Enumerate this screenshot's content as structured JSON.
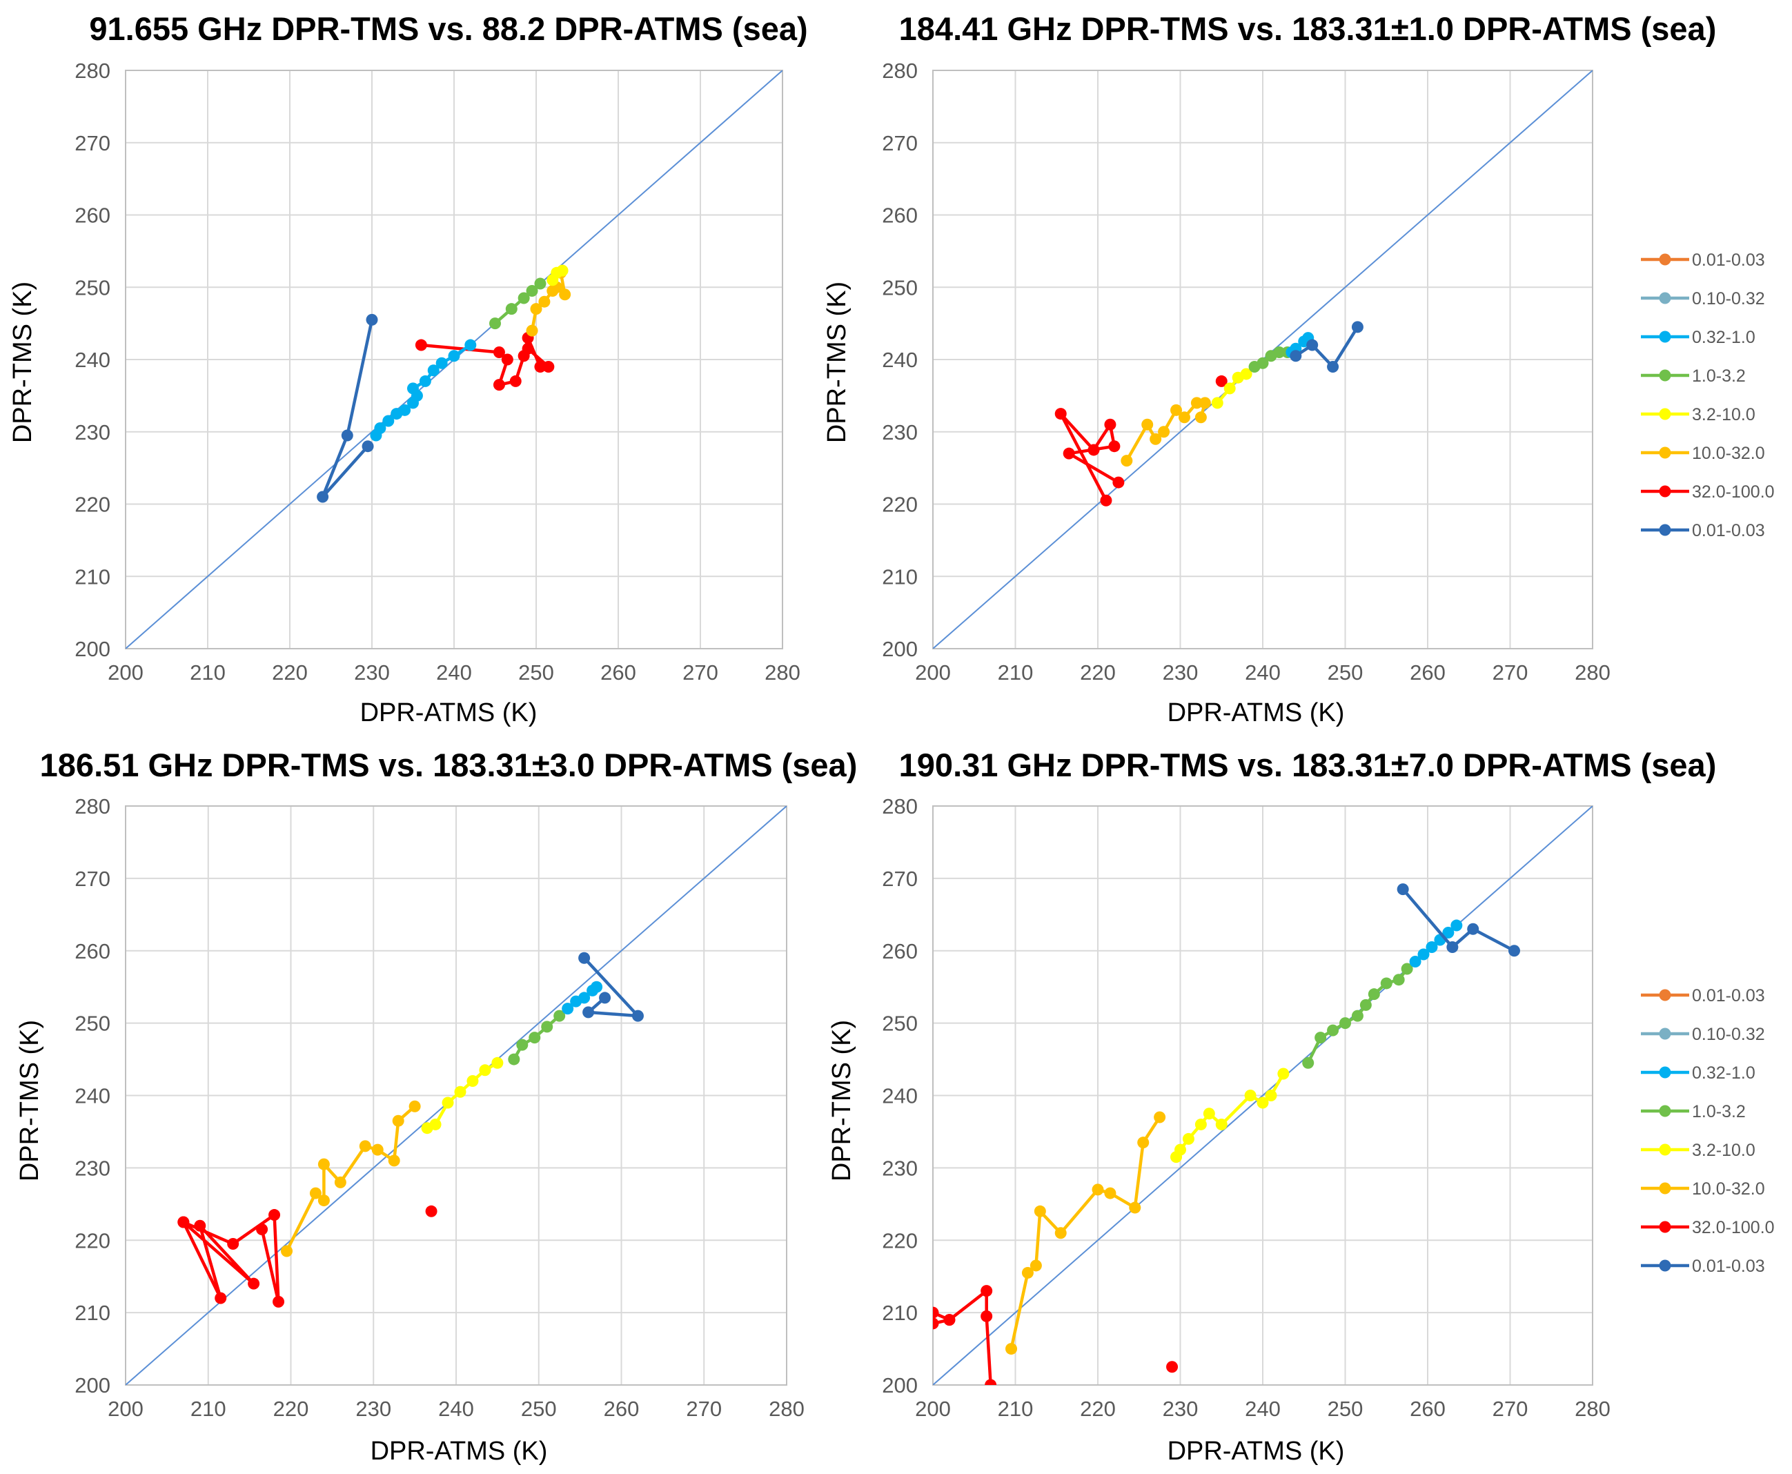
{
  "colors": {
    "grid": "#d9d9d9",
    "one_to_one_line": "#5b8fd6",
    "frame": "#bfbfbf",
    "series": [
      "#ed7d31",
      "#7ab0c4",
      "#00b0f0",
      "#70c04a",
      "#ffff00",
      "#ffc000",
      "#ff0000",
      "#2e6bb5"
    ]
  },
  "legend": {
    "items": [
      "0.01-0.03",
      "0.10-0.32",
      "0.32-1.0",
      "1.0-3.2",
      "3.2-10.0",
      "10.0-32.0",
      "32.0-100.0",
      "0.01-0.03"
    ]
  },
  "chart_data": [
    {
      "type": "line",
      "title": "91.655 GHz DPR-TMS vs. 88.2 DPR-ATMS (sea)",
      "xlabel": "DPR-ATMS (K)",
      "ylabel": "DPR-TMS (K)",
      "xlim": [
        200,
        280
      ],
      "ylim": [
        200,
        280
      ],
      "xticks": [
        "200",
        "210",
        "220",
        "230",
        "240",
        "250",
        "260",
        "270",
        "280"
      ],
      "yticks": [
        "200",
        "210",
        "220",
        "230",
        "240",
        "250",
        "260",
        "270",
        "280"
      ],
      "grid": true,
      "reference_line": [
        [
          200,
          200
        ],
        [
          280,
          280
        ]
      ],
      "series": [
        {
          "name": "32.0-100.0",
          "points": [
            [
              236,
              242
            ],
            [
              245.5,
              241
            ],
            [
              246.5,
              240
            ],
            [
              245.5,
              236.5
            ],
            [
              247.5,
              237
            ],
            [
              248.5,
              240.5
            ],
            [
              249,
              243
            ],
            [
              250.5,
              239
            ],
            [
              251.5,
              239
            ],
            [
              249,
              241.5
            ]
          ]
        },
        {
          "name": "10.0-32.0",
          "points": [
            [
              249.5,
              244
            ],
            [
              250,
              247
            ],
            [
              251,
              248
            ],
            [
              252,
              249.5
            ],
            [
              252.5,
              250
            ],
            [
              253.5,
              249
            ],
            [
              253,
              252
            ]
          ]
        },
        {
          "name": "3.2-10.0",
          "points": [
            [
              252,
              251
            ],
            [
              252.5,
              252
            ],
            [
              253.2,
              252.3
            ]
          ]
        },
        {
          "name": "1.0-3.2",
          "points": [
            [
              245,
              245
            ],
            [
              247,
              247
            ],
            [
              248.5,
              248.5
            ],
            [
              249.5,
              249.5
            ],
            [
              250.5,
              250.5
            ]
          ]
        },
        {
          "name": "0.32-1.0",
          "points": [
            [
              230.5,
              229.5
            ],
            [
              231,
              230.5
            ],
            [
              232,
              231.5
            ],
            [
              233,
              232.5
            ],
            [
              234,
              233
            ],
            [
              235,
              234
            ],
            [
              235.5,
              235
            ],
            [
              235,
              236
            ],
            [
              236.5,
              237
            ],
            [
              237.5,
              238.5
            ],
            [
              238.5,
              239.5
            ],
            [
              240,
              240.5
            ],
            [
              242,
              242
            ]
          ]
        },
        {
          "name": "0.01-0.03",
          "points": [
            [
              229.5,
              228
            ],
            [
              224,
              221
            ],
            [
              227,
              229.5
            ],
            [
              230,
              245.5
            ]
          ]
        }
      ]
    },
    {
      "type": "line",
      "title": "184.41 GHz DPR-TMS vs. 183.31±1.0 DPR-ATMS (sea)",
      "xlabel": "DPR-ATMS (K)",
      "ylabel": "DPR-TMS (K)",
      "xlim": [
        200,
        280
      ],
      "ylim": [
        200,
        280
      ],
      "xticks": [
        "200",
        "210",
        "220",
        "230",
        "240",
        "250",
        "260",
        "270",
        "280"
      ],
      "yticks": [
        "200",
        "210",
        "220",
        "230",
        "240",
        "250",
        "260",
        "270",
        "280"
      ],
      "grid": true,
      "reference_line": [
        [
          200,
          200
        ],
        [
          280,
          280
        ]
      ],
      "series": [
        {
          "name": "32.0-100.0",
          "points": [
            [
              221,
              220.5
            ],
            [
              215.5,
              232.5
            ],
            [
              219.5,
              227.5
            ],
            [
              221.5,
              231
            ],
            [
              222,
              228
            ],
            [
              216.5,
              227
            ],
            [
              222.5,
              223
            ]
          ]
        },
        {
          "name": "32.0-100.0 outlier",
          "points": [
            [
              235,
              237
            ]
          ]
        },
        {
          "name": "10.0-32.0",
          "points": [
            [
              223.5,
              226
            ],
            [
              226,
              231
            ],
            [
              227,
              229
            ],
            [
              228,
              230
            ],
            [
              229.5,
              233
            ],
            [
              230.5,
              232
            ],
            [
              232,
              234
            ],
            [
              233,
              234
            ],
            [
              232.5,
              232
            ]
          ]
        },
        {
          "name": "3.2-10.0",
          "points": [
            [
              234.5,
              234
            ],
            [
              236,
              236
            ],
            [
              237,
              237.5
            ],
            [
              238,
              238
            ]
          ]
        },
        {
          "name": "1.0-3.2",
          "points": [
            [
              239,
              239
            ],
            [
              240,
              239.5
            ],
            [
              241,
              240.5
            ],
            [
              242,
              241
            ],
            [
              243,
              241
            ]
          ]
        },
        {
          "name": "0.32-1.0",
          "points": [
            [
              243.5,
              241
            ],
            [
              244,
              241.5
            ],
            [
              245,
              242.5
            ],
            [
              245.5,
              243
            ]
          ]
        },
        {
          "name": "0.01-0.03",
          "points": [
            [
              244,
              240.5
            ],
            [
              246,
              242
            ],
            [
              248.5,
              239
            ],
            [
              251.5,
              244.5
            ]
          ]
        }
      ]
    },
    {
      "type": "line",
      "title": "186.51 GHz DPR-TMS vs. 183.31±3.0 DPR-ATMS (sea)",
      "xlabel": "DPR-ATMS (K)",
      "ylabel": "DPR-TMS (K)",
      "xlim": [
        200,
        280
      ],
      "ylim": [
        200,
        280
      ],
      "xticks": [
        "200",
        "210",
        "220",
        "230",
        "240",
        "250",
        "260",
        "270",
        "280"
      ],
      "yticks": [
        "200",
        "210",
        "220",
        "230",
        "240",
        "250",
        "260",
        "270",
        "280"
      ],
      "grid": true,
      "reference_line": [
        [
          200,
          200
        ],
        [
          280,
          280
        ]
      ],
      "series": [
        {
          "name": "32.0-100.0",
          "points": [
            [
              207,
              222.5
            ],
            [
              211.5,
              212
            ],
            [
              209,
              222
            ],
            [
              215.5,
              214
            ],
            [
              207,
              222.5
            ],
            [
              213,
              219.5
            ],
            [
              218,
              223.5
            ],
            [
              218.5,
              211.5
            ],
            [
              216.5,
              221.5
            ]
          ]
        },
        {
          "name": "32.0-100.0 outlier",
          "points": [
            [
              237,
              224
            ]
          ]
        },
        {
          "name": "10.0-32.0",
          "points": [
            [
              219.5,
              218.5
            ],
            [
              223,
              226.5
            ],
            [
              224,
              225.5
            ],
            [
              224,
              230.5
            ],
            [
              226,
              228
            ],
            [
              229,
              233
            ],
            [
              230.5,
              232.5
            ],
            [
              232.5,
              231
            ],
            [
              233,
              236.5
            ],
            [
              235,
              238.5
            ]
          ]
        },
        {
          "name": "3.2-10.0",
          "points": [
            [
              236.5,
              235.5
            ],
            [
              237.5,
              236
            ],
            [
              239,
              239
            ],
            [
              240.5,
              240.5
            ],
            [
              242,
              242
            ],
            [
              243.5,
              243.5
            ],
            [
              245,
              244.5
            ]
          ]
        },
        {
          "name": "1.0-3.2",
          "points": [
            [
              247,
              245
            ],
            [
              248,
              247
            ],
            [
              249.5,
              248
            ],
            [
              251,
              249.5
            ],
            [
              252.5,
              251
            ]
          ]
        },
        {
          "name": "0.32-1.0",
          "points": [
            [
              253.5,
              252
            ],
            [
              254.5,
              253
            ],
            [
              255.5,
              253.5
            ],
            [
              256.5,
              254.5
            ],
            [
              257,
              255
            ]
          ]
        },
        {
          "name": "0.01-0.03",
          "points": [
            [
              255.5,
              259
            ],
            [
              262,
              251
            ],
            [
              256,
              251.5
            ],
            [
              258,
              253.5
            ]
          ]
        }
      ]
    },
    {
      "type": "line",
      "title": "190.31 GHz DPR-TMS vs. 183.31±7.0 DPR-ATMS (sea)",
      "xlabel": "DPR-ATMS (K)",
      "ylabel": "DPR-TMS (K)",
      "xlim": [
        200,
        280
      ],
      "ylim": [
        200,
        280
      ],
      "xticks": [
        "200",
        "210",
        "220",
        "230",
        "240",
        "250",
        "260",
        "270",
        "280"
      ],
      "yticks": [
        "200",
        "210",
        "220",
        "230",
        "240",
        "250",
        "260",
        "270",
        "280"
      ],
      "grid": true,
      "reference_line": [
        [
          200,
          200
        ],
        [
          280,
          280
        ]
      ],
      "series": [
        {
          "name": "32.0-100.0",
          "points": [
            [
              200,
              210
            ],
            [
              202,
              209
            ],
            [
              200,
              208.5
            ],
            [
              202,
              209
            ],
            [
              206.5,
              213
            ],
            [
              206.5,
              209.5
            ],
            [
              207,
              200
            ]
          ]
        },
        {
          "name": "32.0-100.0 outlier",
          "points": [
            [
              229,
              202.5
            ]
          ]
        },
        {
          "name": "10.0-32.0",
          "points": [
            [
              209.5,
              205
            ],
            [
              211.5,
              215.5
            ],
            [
              212.5,
              216.5
            ],
            [
              213,
              224
            ],
            [
              215.5,
              221
            ],
            [
              220,
              227
            ],
            [
              221.5,
              226.5
            ],
            [
              224.5,
              224.5
            ],
            [
              225.5,
              233.5
            ],
            [
              227.5,
              237
            ]
          ]
        },
        {
          "name": "3.2-10.0",
          "points": [
            [
              229.5,
              231.5
            ],
            [
              230,
              232.5
            ],
            [
              231,
              234
            ],
            [
              232.5,
              236
            ],
            [
              233.5,
              237.5
            ],
            [
              235,
              236
            ],
            [
              238.5,
              240
            ],
            [
              240,
              239
            ],
            [
              241,
              240
            ],
            [
              242.5,
              243
            ]
          ]
        },
        {
          "name": "1.0-3.2",
          "points": [
            [
              245.5,
              244.5
            ],
            [
              247,
              248
            ],
            [
              248.5,
              249
            ],
            [
              250,
              250
            ],
            [
              251.5,
              251
            ],
            [
              252.5,
              252.5
            ],
            [
              253.5,
              254
            ],
            [
              255,
              255.5
            ],
            [
              256.5,
              256
            ],
            [
              257.5,
              257.5
            ]
          ]
        },
        {
          "name": "0.32-1.0",
          "points": [
            [
              258.5,
              258.5
            ],
            [
              259.5,
              259.5
            ],
            [
              260.5,
              260.5
            ],
            [
              261.5,
              261.5
            ],
            [
              262.5,
              262.5
            ],
            [
              263.5,
              263.5
            ]
          ]
        },
        {
          "name": "0.01-0.03",
          "points": [
            [
              257,
              268.5
            ],
            [
              263,
              260.5
            ],
            [
              265.5,
              263
            ],
            [
              270.5,
              260
            ]
          ]
        }
      ]
    }
  ]
}
